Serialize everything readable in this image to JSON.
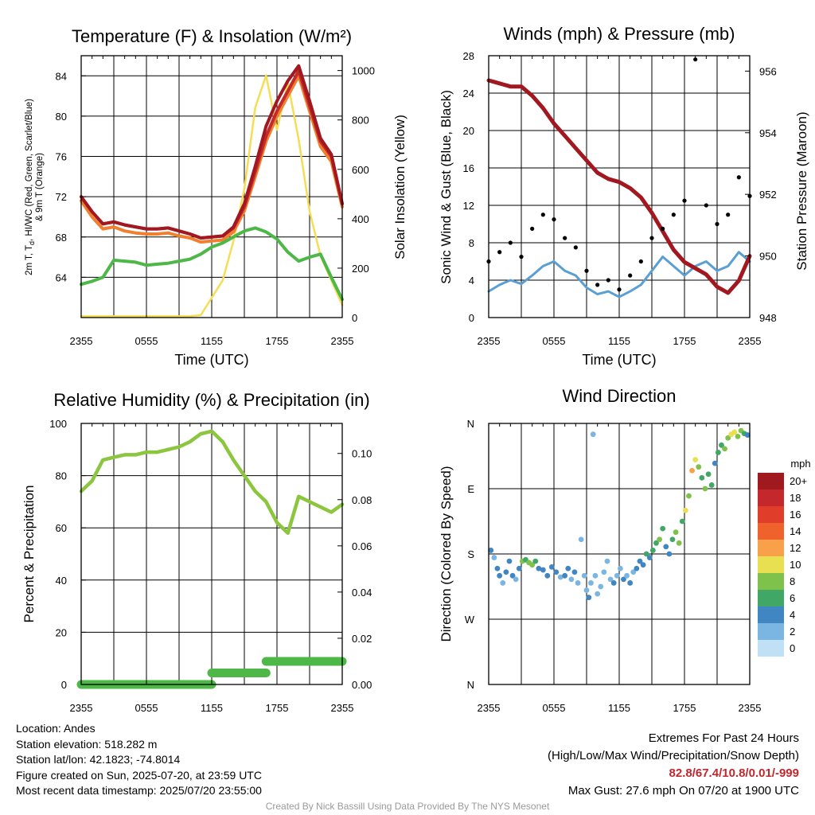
{
  "panels": {
    "temp": {
      "title": "Temperature (F) & Insolation (W/m²)",
      "ylabel_left_line1": "2m T, T",
      "ylabel_left_sub": "d",
      "ylabel_left_line1b": ", HI/WC (Red, Green, Scarlet/Blue)",
      "ylabel_left_line2": "& 9m T (Orange)",
      "ylabel_right": "Solar Insolation (Yellow)",
      "xlabel": "Time (UTC)"
    },
    "wind": {
      "title": "Winds (mph) & Pressure (mb)",
      "ylabel_left": "Sonic Wind & Gust (Blue, Black)",
      "ylabel_right": "Station Pressure (Maroon)",
      "xlabel": "Time (UTC)"
    },
    "rh": {
      "title": "Relative Humidity (%) & Precipitation (in)",
      "ylabel_left": "Percent & Precipitation"
    },
    "dir": {
      "title": "Wind Direction",
      "ylabel_left": "Direction (Colored By Speed)",
      "legend_title": "mph",
      "legend_labels": [
        "20+",
        "18",
        "16",
        "14",
        "12",
        "10",
        "8",
        "6",
        "4",
        "2",
        "0"
      ]
    }
  },
  "colors": {
    "temp": "#c42a27",
    "heat_index": "#a11820",
    "temp_9m": "#f08030",
    "dewpoint": "#4db848",
    "solar": "#f5dd55",
    "wind": "#5a9fd4",
    "gust": "#000000",
    "pressure": "#a11820",
    "rh": "#8cc63f",
    "precip": "#4db848",
    "speed_scale": [
      "#a0191e",
      "#c4282c",
      "#e03d2a",
      "#f0622b",
      "#f8a04a",
      "#e8e050",
      "#7fc24b",
      "#40a766",
      "#3f86c2",
      "#7bb6e2",
      "#bfe0f5"
    ]
  },
  "info": {
    "location": "Location: Andes",
    "elevation": "Station elevation: 518.282 m",
    "latlon": "Station lat/lon: 42.1823; -74.8014",
    "created": "Figure created on Sun, 2025-07-20, at 23:59 UTC",
    "recent": "Most recent data timestamp: 2025/07/20 23:55:00",
    "extremes_title": "Extremes For Past 24 Hours",
    "extremes_desc": "(High/Low/Max Wind/Precipitation/Snow Depth)",
    "extremes_values": "82.8/67.4/10.8/0.01/-999",
    "max_gust": "Max Gust: 27.6 mph On 07/20 at 1900 UTC",
    "credit": "Created By Nick Bassill Using Data Provided By The NYS Mesonet"
  },
  "chart_data": [
    {
      "type": "line",
      "title": "Temperature (F) & Insolation (W/m²)",
      "xlabel": "Time (UTC)",
      "x_ticks": [
        "2355",
        "0555",
        "1155",
        "1755",
        "2355"
      ],
      "x_hours": [
        0,
        1,
        2,
        3,
        4,
        5,
        6,
        7,
        8,
        9,
        10,
        11,
        12,
        13,
        14,
        15,
        16,
        17,
        18,
        19,
        20,
        21,
        22,
        23,
        24
      ],
      "ylim_left": [
        60,
        86
      ],
      "yticks_left": [
        64,
        68,
        72,
        76,
        80,
        84
      ],
      "ylim_right": [
        0,
        1060
      ],
      "yticks_right": [
        0,
        200,
        400,
        600,
        800,
        1000
      ],
      "series": [
        {
          "name": "2m T",
          "axis": "left",
          "values": [
            72.0,
            70.5,
            69.3,
            69.5,
            69.2,
            69.0,
            68.8,
            68.8,
            68.9,
            68.6,
            68.3,
            67.9,
            68.0,
            68.1,
            68.9,
            71.0,
            74.5,
            78.0,
            80.5,
            82.5,
            84.5,
            81.0,
            77.5,
            76.0,
            71.3
          ]
        },
        {
          "name": "Heat Index",
          "axis": "left",
          "values": [
            72.0,
            70.5,
            69.3,
            69.5,
            69.2,
            69.0,
            68.8,
            68.8,
            68.9,
            68.6,
            68.3,
            67.9,
            68.0,
            68.1,
            69.0,
            71.3,
            75.0,
            79.0,
            81.5,
            83.5,
            85.0,
            81.5,
            77.8,
            76.2,
            71.3
          ]
        },
        {
          "name": "9m T",
          "axis": "left",
          "values": [
            71.6,
            70.0,
            68.8,
            69.0,
            68.6,
            68.4,
            68.3,
            68.3,
            68.4,
            68.1,
            67.9,
            67.5,
            67.6,
            67.7,
            68.5,
            70.6,
            74.0,
            77.5,
            80.0,
            82.0,
            84.0,
            80.5,
            77.0,
            75.5,
            71.0
          ]
        },
        {
          "name": "Dewpoint",
          "axis": "left",
          "values": [
            63.3,
            63.6,
            64.0,
            65.7,
            65.6,
            65.5,
            65.2,
            65.3,
            65.4,
            65.6,
            65.8,
            66.3,
            67.0,
            67.4,
            68.0,
            68.6,
            68.9,
            68.5,
            67.8,
            66.5,
            65.6,
            66.0,
            66.3,
            64.0,
            61.8
          ]
        },
        {
          "name": "Solar Insolation",
          "axis": "right",
          "values": [
            5,
            5,
            5,
            5,
            5,
            5,
            5,
            5,
            5,
            5,
            5,
            10,
            80,
            150,
            310,
            520,
            850,
            980,
            760,
            950,
            720,
            430,
            250,
            150,
            50
          ]
        }
      ]
    },
    {
      "type": "line",
      "title": "Winds (mph) & Pressure (mb)",
      "xlabel": "Time (UTC)",
      "x_ticks": [
        "2355",
        "0555",
        "1155",
        "1755",
        "2355"
      ],
      "x_hours": [
        0,
        1,
        2,
        3,
        4,
        5,
        6,
        7,
        8,
        9,
        10,
        11,
        12,
        13,
        14,
        15,
        16,
        17,
        18,
        19,
        20,
        21,
        22,
        23,
        24
      ],
      "ylim_left": [
        0,
        28
      ],
      "yticks_left": [
        0,
        4,
        8,
        12,
        16,
        20,
        24,
        28
      ],
      "ylim_right": [
        948,
        956.5
      ],
      "yticks_right": [
        948,
        950,
        952,
        954,
        956
      ],
      "series": [
        {
          "name": "Sonic Wind",
          "axis": "left",
          "values": [
            2.8,
            3.5,
            4.0,
            3.6,
            4.5,
            5.5,
            6.0,
            5.0,
            4.5,
            3.2,
            2.5,
            2.8,
            2.2,
            2.8,
            3.5,
            5.0,
            6.5,
            5.5,
            4.5,
            5.5,
            6.0,
            5.0,
            5.5,
            7.0,
            6.0
          ]
        },
        {
          "name": "Gust",
          "axis": "left",
          "values": [
            6.0,
            7.0,
            8.0,
            6.5,
            9.5,
            11.0,
            10.5,
            8.5,
            7.5,
            5.0,
            3.5,
            4.0,
            3.0,
            4.5,
            6.0,
            8.5,
            9.5,
            11.0,
            12.5,
            27.6,
            12.0,
            10.0,
            11.0,
            15.0,
            13.0
          ]
        },
        {
          "name": "Station Pressure",
          "axis": "right",
          "values": [
            955.7,
            955.6,
            955.5,
            955.5,
            955.2,
            954.8,
            954.3,
            953.9,
            953.5,
            953.1,
            952.7,
            952.5,
            952.4,
            952.2,
            951.9,
            951.4,
            950.8,
            950.2,
            949.8,
            949.6,
            949.4,
            949.0,
            948.8,
            949.2,
            950.0
          ]
        }
      ]
    },
    {
      "type": "line",
      "title": "Relative Humidity (%) & Precipitation (in)",
      "x_ticks": [
        "2355",
        "0555",
        "1155",
        "1755",
        "2355"
      ],
      "x_hours": [
        0,
        1,
        2,
        3,
        4,
        5,
        6,
        7,
        8,
        9,
        10,
        11,
        12,
        13,
        14,
        15,
        16,
        17,
        18,
        19,
        20,
        21,
        22,
        23,
        24
      ],
      "ylim_left": [
        0,
        100
      ],
      "yticks_left": [
        0,
        20,
        40,
        60,
        80,
        100
      ],
      "ylim_right": [
        0,
        0.113
      ],
      "yticks_right": [
        0.0,
        0.02,
        0.04,
        0.06,
        0.08,
        0.1
      ],
      "series": [
        {
          "name": "Relative Humidity",
          "axis": "left",
          "values": [
            74,
            78,
            86,
            87,
            88,
            88,
            89,
            89,
            90,
            91,
            93,
            96,
            97,
            93,
            86,
            80,
            74,
            70,
            62,
            58,
            72,
            70,
            68,
            66,
            69
          ]
        },
        {
          "name": "Precipitation",
          "axis": "right",
          "values": [
            0,
            0,
            0,
            0,
            0,
            0,
            0,
            0,
            0,
            0,
            0,
            0,
            0.005,
            0.005,
            0.005,
            0.005,
            0.005,
            0.01,
            0.01,
            0.01,
            0.01,
            0.01,
            0.01,
            0.01,
            0.01
          ]
        }
      ]
    },
    {
      "type": "scatter",
      "title": "Wind Direction",
      "x_ticks": [
        "2355",
        "0555",
        "1155",
        "1755",
        "2355"
      ],
      "y_ticks": [
        "N",
        "W",
        "S",
        "E",
        "N"
      ],
      "ylim": [
        0,
        360
      ],
      "color_scale_label": "mph",
      "points": [
        {
          "x": 0.2,
          "dir": 185,
          "speed": 3
        },
        {
          "x": 0.5,
          "dir": 175,
          "speed": 2
        },
        {
          "x": 0.8,
          "dir": 160,
          "speed": 3
        },
        {
          "x": 1.0,
          "dir": 150,
          "speed": 4
        },
        {
          "x": 1.3,
          "dir": 140,
          "speed": 2
        },
        {
          "x": 1.6,
          "dir": 155,
          "speed": 4
        },
        {
          "x": 1.9,
          "dir": 170,
          "speed": 3
        },
        {
          "x": 2.2,
          "dir": 150,
          "speed": 4
        },
        {
          "x": 2.5,
          "dir": 145,
          "speed": 2
        },
        {
          "x": 2.8,
          "dir": 160,
          "speed": 3
        },
        {
          "x": 3.1,
          "dir": 170,
          "speed": 7
        },
        {
          "x": 3.4,
          "dir": 172,
          "speed": 6
        },
        {
          "x": 3.7,
          "dir": 168,
          "speed": 8
        },
        {
          "x": 4.0,
          "dir": 165,
          "speed": 7
        },
        {
          "x": 4.3,
          "dir": 170,
          "speed": 5
        },
        {
          "x": 4.6,
          "dir": 160,
          "speed": 4
        },
        {
          "x": 5.0,
          "dir": 158,
          "speed": 3
        },
        {
          "x": 5.4,
          "dir": 150,
          "speed": 4
        },
        {
          "x": 5.8,
          "dir": 162,
          "speed": 3
        },
        {
          "x": 6.2,
          "dir": 155,
          "speed": 4
        },
        {
          "x": 6.6,
          "dir": 148,
          "speed": 2
        },
        {
          "x": 7.0,
          "dir": 150,
          "speed": 3
        },
        {
          "x": 7.3,
          "dir": 160,
          "speed": 4
        },
        {
          "x": 7.6,
          "dir": 145,
          "speed": 2
        },
        {
          "x": 7.9,
          "dir": 155,
          "speed": 3
        },
        {
          "x": 8.2,
          "dir": 140,
          "speed": 2
        },
        {
          "x": 8.5,
          "dir": 200,
          "speed": 2
        },
        {
          "x": 8.8,
          "dir": 150,
          "speed": 1
        },
        {
          "x": 9.0,
          "dir": 130,
          "speed": 2
        },
        {
          "x": 9.2,
          "dir": 120,
          "speed": 3
        },
        {
          "x": 9.4,
          "dir": 140,
          "speed": 1
        },
        {
          "x": 9.6,
          "dir": 345,
          "speed": 1
        },
        {
          "x": 9.8,
          "dir": 150,
          "speed": 2
        },
        {
          "x": 10.0,
          "dir": 125,
          "speed": 1
        },
        {
          "x": 10.3,
          "dir": 135,
          "speed": 2
        },
        {
          "x": 10.6,
          "dir": 155,
          "speed": 2
        },
        {
          "x": 10.9,
          "dir": 170,
          "speed": 1
        },
        {
          "x": 11.2,
          "dir": 145,
          "speed": 2
        },
        {
          "x": 11.5,
          "dir": 140,
          "speed": 3
        },
        {
          "x": 11.8,
          "dir": 150,
          "speed": 2
        },
        {
          "x": 12.1,
          "dir": 160,
          "speed": 2
        },
        {
          "x": 12.4,
          "dir": 145,
          "speed": 3
        },
        {
          "x": 12.7,
          "dir": 150,
          "speed": 2
        },
        {
          "x": 13.0,
          "dir": 140,
          "speed": 3
        },
        {
          "x": 13.3,
          "dir": 155,
          "speed": 2
        },
        {
          "x": 13.6,
          "dir": 160,
          "speed": 4
        },
        {
          "x": 13.9,
          "dir": 170,
          "speed": 3
        },
        {
          "x": 14.2,
          "dir": 165,
          "speed": 4
        },
        {
          "x": 14.5,
          "dir": 180,
          "speed": 5
        },
        {
          "x": 14.8,
          "dir": 175,
          "speed": 4
        },
        {
          "x": 15.1,
          "dir": 185,
          "speed": 6
        },
        {
          "x": 15.4,
          "dir": 195,
          "speed": 5
        },
        {
          "x": 15.7,
          "dir": 200,
          "speed": 7
        },
        {
          "x": 16.0,
          "dir": 215,
          "speed": 6
        },
        {
          "x": 16.3,
          "dir": 190,
          "speed": 3
        },
        {
          "x": 16.6,
          "dir": 180,
          "speed": 4
        },
        {
          "x": 16.9,
          "dir": 200,
          "speed": 6
        },
        {
          "x": 17.2,
          "dir": 210,
          "speed": 8
        },
        {
          "x": 17.5,
          "dir": 195,
          "speed": 7
        },
        {
          "x": 17.8,
          "dir": 225,
          "speed": 6
        },
        {
          "x": 18.1,
          "dir": 240,
          "speed": 9
        },
        {
          "x": 18.4,
          "dir": 260,
          "speed": 8
        },
        {
          "x": 18.7,
          "dir": 295,
          "speed": 12
        },
        {
          "x": 19.0,
          "dir": 310,
          "speed": 10
        },
        {
          "x": 19.3,
          "dir": 300,
          "speed": 7
        },
        {
          "x": 19.6,
          "dir": 285,
          "speed": 6
        },
        {
          "x": 19.9,
          "dir": 270,
          "speed": 8
        },
        {
          "x": 20.2,
          "dir": 290,
          "speed": 5
        },
        {
          "x": 20.5,
          "dir": 275,
          "speed": 6
        },
        {
          "x": 20.8,
          "dir": 305,
          "speed": 4
        },
        {
          "x": 21.1,
          "dir": 320,
          "speed": 6
        },
        {
          "x": 21.4,
          "dir": 330,
          "speed": 5
        },
        {
          "x": 21.7,
          "dir": 325,
          "speed": 7
        },
        {
          "x": 22.0,
          "dir": 340,
          "speed": 8
        },
        {
          "x": 22.3,
          "dir": 345,
          "speed": 9
        },
        {
          "x": 22.6,
          "dir": 348,
          "speed": 10
        },
        {
          "x": 22.9,
          "dir": 342,
          "speed": 7
        },
        {
          "x": 23.2,
          "dir": 350,
          "speed": 8
        },
        {
          "x": 23.5,
          "dir": 346,
          "speed": 6
        },
        {
          "x": 23.8,
          "dir": 344,
          "speed": 4
        }
      ]
    }
  ]
}
